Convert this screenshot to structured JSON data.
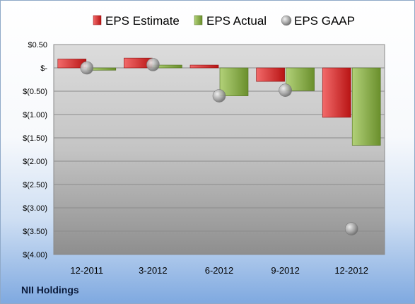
{
  "company": "NII Holdings",
  "colors": {
    "estimate": "#e32b2b",
    "actual": "#8fb54a",
    "gaap": "#a9a9a9"
  },
  "chart_data": {
    "type": "bar",
    "categories": [
      "12-2011",
      "3-2012",
      "6-2012",
      "9-2012",
      "12-2012"
    ],
    "series": [
      {
        "name": "EPS Estimate",
        "type": "bar",
        "values": [
          0.19,
          0.21,
          0.06,
          -0.29,
          -1.06
        ]
      },
      {
        "name": "EPS Actual",
        "type": "bar",
        "values": [
          -0.05,
          0.06,
          -0.6,
          -0.49,
          -1.66
        ]
      },
      {
        "name": "EPS GAAP",
        "type": "scatter",
        "values": [
          0.0,
          0.07,
          -0.6,
          -0.48,
          -3.45
        ]
      }
    ],
    "ylim": [
      -4.0,
      0.5
    ],
    "yticks": [
      0.5,
      0.0,
      -0.5,
      -1.0,
      -1.5,
      -2.0,
      -2.5,
      -3.0,
      -3.5,
      -4.0
    ],
    "ytick_labels": [
      "$0.50",
      "$-",
      "$(0.50)",
      "$(1.00)",
      "$(1.50)",
      "$(2.00)",
      "$(2.50)",
      "$(3.00)",
      "$(3.50)",
      "$(4.00)"
    ],
    "grid": true,
    "legend_position": "top"
  }
}
